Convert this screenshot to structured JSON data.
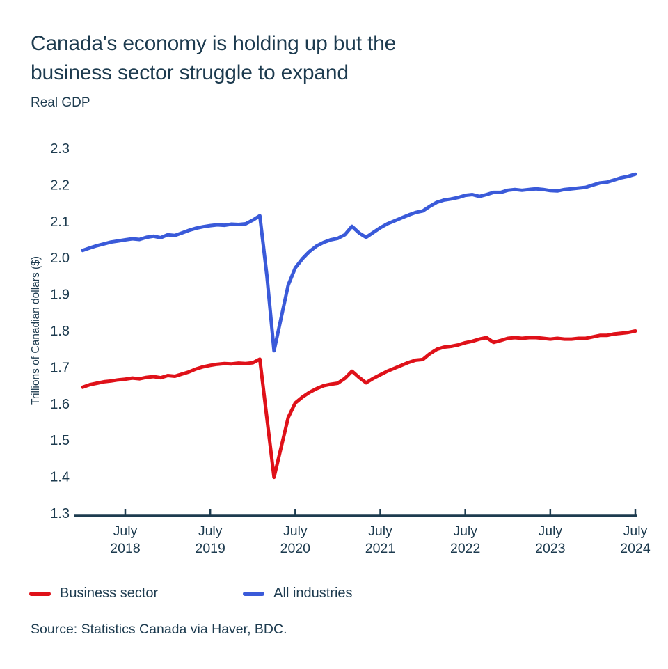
{
  "title": "Canada's economy is holding up but the business sector struggle to expand",
  "title_lines": [
    "Canada's economy is holding up but the",
    "business sector struggle to expand"
  ],
  "subtitle": "Real GDP",
  "source": "Source: Statistics Canada via Haver, BDC.",
  "colors": {
    "text": "#1d3b4f",
    "axis": "#1d3b4f",
    "business": "#df1119",
    "industries": "#3a5ad9"
  },
  "legend": [
    {
      "label": "Business sector",
      "color_key": "business"
    },
    {
      "label": "All industries",
      "color_key": "industries"
    }
  ],
  "chart_data": {
    "type": "line",
    "title": "Real GDP",
    "xlabel": "",
    "ylabel": "Trillions of Canadian dollars ($)",
    "ylim": [
      1.3,
      2.3
    ],
    "yticks": [
      2.3,
      2.2,
      2.1,
      2.0,
      1.9,
      1.8,
      1.7,
      1.6,
      1.5,
      1.4,
      1.3
    ],
    "grid": false,
    "legend_position": "bottom",
    "x_unit": "month",
    "x_start": "2018-01",
    "x_end": "2024-07",
    "xticks": [
      {
        "month": "July",
        "year": "2018"
      },
      {
        "month": "July",
        "year": "2019"
      },
      {
        "month": "July",
        "year": "2020"
      },
      {
        "month": "July",
        "year": "2021"
      },
      {
        "month": "July",
        "year": "2022"
      },
      {
        "month": "July",
        "year": "2023"
      },
      {
        "month": "July",
        "year": "2024"
      }
    ],
    "series": [
      {
        "name": "All industries",
        "color_key": "industries",
        "values": [
          2.02,
          2.027,
          2.033,
          2.038,
          2.043,
          2.046,
          2.049,
          2.052,
          2.05,
          2.056,
          2.059,
          2.055,
          2.063,
          2.061,
          2.068,
          2.075,
          2.081,
          2.085,
          2.088,
          2.09,
          2.089,
          2.092,
          2.091,
          2.093,
          2.103,
          2.115,
          1.95,
          1.745,
          1.835,
          1.925,
          1.972,
          1.997,
          2.017,
          2.032,
          2.042,
          2.049,
          2.053,
          2.063,
          2.086,
          2.068,
          2.056,
          2.069,
          2.082,
          2.093,
          2.101,
          2.109,
          2.117,
          2.124,
          2.128,
          2.141,
          2.152,
          2.158,
          2.161,
          2.165,
          2.171,
          2.173,
          2.168,
          2.173,
          2.179,
          2.179,
          2.185,
          2.187,
          2.185,
          2.187,
          2.189,
          2.187,
          2.184,
          2.183,
          2.187,
          2.189,
          2.191,
          2.193,
          2.199,
          2.205,
          2.207,
          2.213,
          2.219,
          2.223,
          2.229
        ]
      },
      {
        "name": "Business sector",
        "color_key": "business",
        "values": [
          1.645,
          1.652,
          1.656,
          1.66,
          1.662,
          1.665,
          1.667,
          1.67,
          1.668,
          1.672,
          1.674,
          1.671,
          1.677,
          1.675,
          1.681,
          1.687,
          1.695,
          1.701,
          1.705,
          1.708,
          1.71,
          1.709,
          1.711,
          1.71,
          1.712,
          1.722,
          1.56,
          1.398,
          1.48,
          1.562,
          1.602,
          1.618,
          1.631,
          1.641,
          1.649,
          1.653,
          1.656,
          1.669,
          1.689,
          1.672,
          1.657,
          1.669,
          1.679,
          1.689,
          1.697,
          1.705,
          1.713,
          1.719,
          1.721,
          1.737,
          1.749,
          1.755,
          1.757,
          1.761,
          1.767,
          1.771,
          1.777,
          1.781,
          1.768,
          1.773,
          1.779,
          1.781,
          1.779,
          1.781,
          1.781,
          1.779,
          1.777,
          1.779,
          1.777,
          1.777,
          1.779,
          1.779,
          1.783,
          1.787,
          1.787,
          1.791,
          1.793,
          1.795,
          1.799
        ]
      }
    ]
  }
}
